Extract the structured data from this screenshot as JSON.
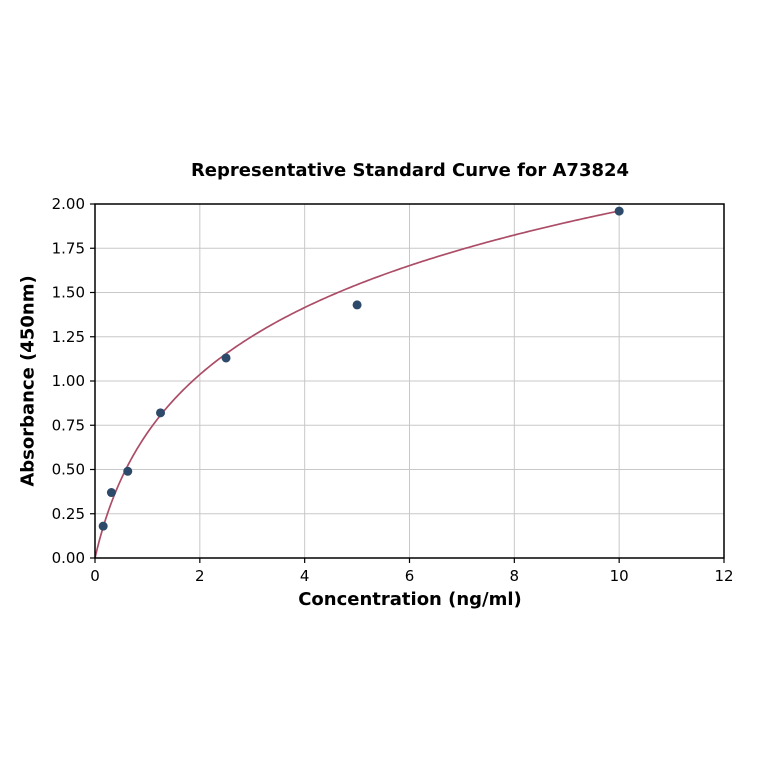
{
  "figure": {
    "background": "#ffffff"
  },
  "chart_data": {
    "type": "scatter",
    "title": "Representative Standard Curve for A73824",
    "xlabel": "Concentration (ng/ml)",
    "ylabel": "Absorbance (450nm)",
    "xlim": [
      0,
      12
    ],
    "ylim": [
      0,
      2.0
    ],
    "xticks": [
      0,
      2,
      4,
      6,
      8,
      10,
      12
    ],
    "ytick_labels": [
      "0.00",
      "0.25",
      "0.50",
      "0.75",
      "1.00",
      "1.25",
      "1.50",
      "1.75",
      "2.00"
    ],
    "grid": true,
    "legend": "none",
    "points": {
      "x": [
        0.156,
        0.313,
        0.625,
        1.25,
        2.5,
        5,
        10
      ],
      "y": [
        0.18,
        0.37,
        0.49,
        0.82,
        1.13,
        1.43,
        1.96
      ]
    },
    "fit_curve": {
      "model": "y = a * ln(1 + b*x)",
      "a": 0.644,
      "b": 2.0,
      "x_start": 0,
      "x_end": 10
    },
    "colors": {
      "point": "#2d4a6b",
      "curve": "#ac4d68",
      "grid": "#c8c8c8",
      "axis": "#000000",
      "text": "#000000"
    }
  }
}
